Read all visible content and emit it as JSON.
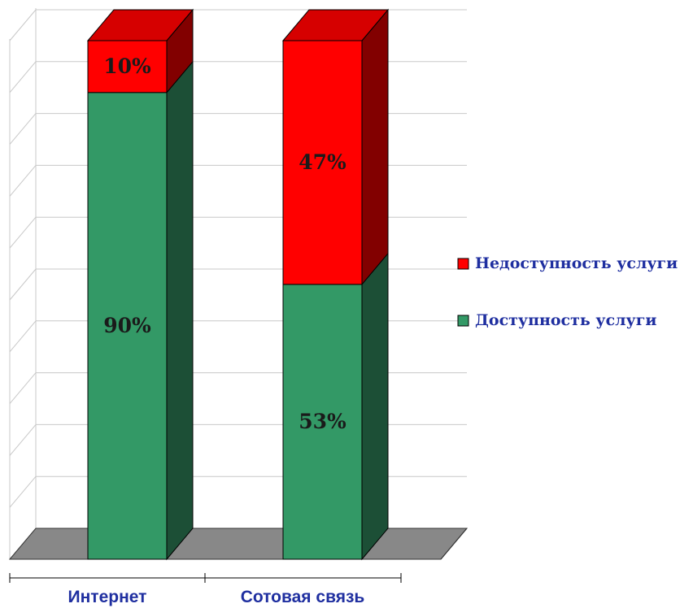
{
  "chart_data": {
    "type": "bar",
    "stacked": true,
    "style": "3d",
    "categories": [
      "Интернет",
      "Сотовая связь"
    ],
    "series": [
      {
        "name": "Доступность услуги",
        "values": [
          90,
          53
        ],
        "labels": [
          "90%",
          "53%"
        ]
      },
      {
        "name": "Недоступность услуги",
        "values": [
          10,
          47
        ],
        "labels": [
          "10%",
          "47%"
        ]
      }
    ],
    "ylim": [
      0,
      100
    ],
    "grid": true,
    "legend_position": "right",
    "title": "",
    "xlabel": "",
    "ylabel": ""
  },
  "colors": {
    "available_front": "#339966",
    "available_side": "#1c4f36",
    "unavailable_front": "#ff0000",
    "unavailable_top": "#d60000",
    "unavailable_side": "#820000",
    "floor": "#888888",
    "grid": "#c8c8c8"
  }
}
